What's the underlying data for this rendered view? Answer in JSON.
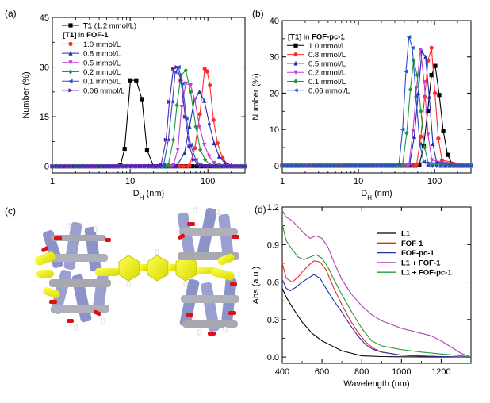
{
  "chart_data": [
    {
      "panel_label": "(a)",
      "type": "line",
      "xscale": "log",
      "xlabel": "D",
      "xlabel_sub": "H",
      "xlabel_unit": " (nm)",
      "ylabel": "Number (%)",
      "xlim": [
        1,
        300
      ],
      "ylim": [
        -2,
        45
      ],
      "xticks": [
        1,
        10,
        100
      ],
      "xtick_labels": [
        "1",
        "10",
        "100"
      ],
      "yticks": [
        0,
        15,
        30,
        45
      ],
      "ytick_labels": [
        "0",
        "15",
        "30",
        "45"
      ],
      "legend_position": "top-left",
      "legend_header": {
        "bold": "[T1]",
        "rest": " in ",
        "bold2": "FOF-1"
      },
      "series": [
        {
          "name_bold": "T1",
          "name": " (1.2 mmol/L)",
          "color": "#000000",
          "marker": "square",
          "x": [
            1,
            7.5,
            8.5,
            10.1,
            12.0,
            14.2,
            16.5,
            20,
            300
          ],
          "y": [
            0,
            0.3,
            5.3,
            26.0,
            26.0,
            20.3,
            5.0,
            0,
            0
          ]
        },
        {
          "name": "1.0 mmol/L",
          "color": "#ff2a2a",
          "marker": "circle",
          "x": [
            1,
            58,
            68,
            79,
            91,
            98,
            106,
            118,
            133,
            155,
            180,
            300
          ],
          "y": [
            0,
            0.2,
            5.5,
            15.8,
            29.5,
            28.7,
            24.5,
            14.0,
            7.0,
            2.5,
            0.5,
            0
          ]
        },
        {
          "name": "0.8 mmol/L",
          "color": "#1f2fb4",
          "marker": "triangle-up",
          "x": [
            1,
            40,
            50,
            58,
            67,
            78,
            90,
            104,
            120,
            140,
            165,
            200,
            300
          ],
          "y": [
            0,
            0.2,
            4.0,
            12.0,
            20.0,
            22.5,
            19.8,
            13.0,
            7.0,
            3.0,
            1.0,
            0.3,
            0
          ]
        },
        {
          "name": "0.5 mmol/L",
          "color": "#c040d0",
          "marker": "triangle-down",
          "x": [
            1,
            36,
            41,
            46,
            52,
            60,
            68,
            78,
            90,
            104,
            120,
            140,
            300
          ],
          "y": [
            0,
            0.3,
            5.0,
            18.0,
            25.0,
            24.5,
            20.0,
            12.0,
            6.5,
            3.0,
            1.0,
            0.3,
            0
          ]
        },
        {
          "name": "0.2 mmol/L",
          "color": "#1a9a3a",
          "marker": "diamond",
          "x": [
            1,
            31,
            36,
            40,
            45,
            52,
            60,
            70,
            80,
            92,
            106,
            300
          ],
          "y": [
            0,
            0.5,
            8.0,
            18.5,
            27.5,
            29.0,
            22.5,
            12.0,
            5.0,
            2.0,
            0.5,
            0
          ]
        },
        {
          "name": "0.1 mmol/L",
          "color": "#2a50c8",
          "marker": "triangle-left",
          "x": [
            1,
            27,
            31,
            35,
            38,
            42,
            47,
            53,
            60,
            70,
            80,
            300
          ],
          "y": [
            0,
            0.5,
            8.0,
            19.5,
            28.5,
            30.0,
            25.0,
            14.5,
            6.5,
            2.0,
            0.5,
            0
          ]
        },
        {
          "name": "0.06 mmol/L",
          "color": "#5a1eb4",
          "marker": "triangle-right",
          "x": [
            1,
            25,
            29,
            32,
            36,
            40,
            45,
            51,
            58,
            66,
            75,
            300
          ],
          "y": [
            0,
            0.5,
            8.0,
            19.5,
            29.5,
            30.0,
            26.0,
            15.0,
            6.0,
            2.0,
            0.5,
            0
          ]
        }
      ]
    },
    {
      "panel_label": "(b)",
      "type": "line",
      "xscale": "log",
      "xlabel": "D",
      "xlabel_sub": "H",
      "xlabel_unit": " (nm)",
      "ylabel": "Number (%)",
      "xlim": [
        1,
        300
      ],
      "ylim": [
        -2,
        40
      ],
      "xticks": [
        1,
        10,
        100
      ],
      "xtick_labels": [
        "1",
        "10",
        "100"
      ],
      "yticks": [
        0,
        10,
        20,
        30,
        40
      ],
      "ytick_labels": [
        "0",
        "10",
        "20",
        "30",
        "40"
      ],
      "legend_position": "top-left",
      "legend_header": {
        "bold": "[T1]",
        "rest": " in ",
        "bold2": "FOF-pc-1"
      },
      "series": [
        {
          "name": "1.0 mmol/L",
          "color": "#000000",
          "marker": "square",
          "x": [
            1,
            63,
            72,
            81,
            91,
            102,
            115,
            130,
            148,
            170,
            300
          ],
          "y": [
            0,
            0.3,
            5.5,
            15.0,
            25.0,
            27.5,
            19.5,
            9.5,
            3.0,
            0.5,
            0
          ]
        },
        {
          "name": "0.8 mmol/L",
          "color": "#ff2a2a",
          "marker": "circle",
          "x": [
            1,
            58,
            66,
            74,
            82,
            91,
            101,
            112,
            125,
            300
          ],
          "y": [
            0,
            0.3,
            8.0,
            19.0,
            29.0,
            32.5,
            20.0,
            7.5,
            1.5,
            0
          ]
        },
        {
          "name": "0.5 mmol/L",
          "color": "#1f2fb4",
          "marker": "triangle-up",
          "x": [
            1,
            47,
            54,
            61,
            68,
            76,
            85,
            95,
            106,
            300
          ],
          "y": [
            0,
            0.3,
            8.0,
            20.0,
            31.5,
            30.0,
            19.0,
            6.0,
            1.0,
            0
          ]
        },
        {
          "name": "0.2 mmol/L",
          "color": "#c040d0",
          "marker": "triangle-down",
          "x": [
            1,
            46,
            52,
            58,
            65,
            73,
            82,
            92,
            300
          ],
          "y": [
            0,
            0.3,
            9.5,
            21.5,
            32.0,
            23.0,
            8.5,
            1.5,
            0
          ]
        },
        {
          "name": "0.1 mmol/L",
          "color": "#1a9a3a",
          "marker": "diamond",
          "x": [
            1,
            38,
            43,
            48,
            53,
            59,
            66,
            74,
            83,
            300
          ],
          "y": [
            0,
            0.3,
            9.0,
            21.0,
            29.0,
            25.0,
            15.0,
            5.0,
            0.5,
            0
          ]
        },
        {
          "name": "0.06 mmol/L",
          "color": "#2a50c8",
          "marker": "triangle-left",
          "x": [
            1,
            34,
            38,
            42,
            46,
            51,
            57,
            64,
            72,
            300
          ],
          "y": [
            0,
            0.3,
            10.0,
            26.0,
            35.5,
            32.5,
            19.0,
            6.0,
            1.0,
            0
          ]
        }
      ]
    },
    {
      "panel_label": "(d)",
      "type": "line",
      "xlabel": "Wavelength (nm)",
      "ylabel": "Abs (a.u.)",
      "xlim": [
        400,
        1350
      ],
      "ylim": [
        -0.05,
        1.2
      ],
      "xticks": [
        400,
        600,
        800,
        1000,
        1200
      ],
      "xtick_labels": [
        "400",
        "600",
        "800",
        "1000",
        "1200"
      ],
      "yticks": [
        0.0,
        0.3,
        0.6,
        0.9,
        1.2
      ],
      "ytick_labels": [
        "0.0",
        "0.3",
        "0.6",
        "0.9",
        "1.2"
      ],
      "legend_position": "top-right",
      "series": [
        {
          "name": "L1",
          "color": "#000000",
          "x": [
            400,
            420,
            450,
            500,
            550,
            600,
            650,
            700,
            750,
            800,
            900,
            1000,
            1100,
            1200,
            1350
          ],
          "y": [
            0.55,
            0.48,
            0.4,
            0.28,
            0.19,
            0.13,
            0.09,
            0.05,
            0.03,
            0.01,
            0.004,
            0.002,
            0.001,
            0.0,
            0.0
          ]
        },
        {
          "name": "FOF-1",
          "color": "#e8281e",
          "x": [
            400,
            420,
            450,
            480,
            500,
            530,
            560,
            590,
            620,
            660,
            700,
            740,
            780,
            820,
            860,
            900,
            1000,
            1100,
            1200,
            1350
          ],
          "y": [
            0.75,
            0.63,
            0.6,
            0.64,
            0.68,
            0.73,
            0.77,
            0.76,
            0.7,
            0.55,
            0.42,
            0.3,
            0.2,
            0.12,
            0.07,
            0.04,
            0.015,
            0.008,
            0.004,
            0.0
          ]
        },
        {
          "name": "FOF-pc-1",
          "color": "#2430a8",
          "x": [
            400,
            420,
            440,
            470,
            500,
            530,
            560,
            590,
            620,
            660,
            700,
            740,
            780,
            820,
            860,
            900,
            1000,
            1100,
            1200,
            1350
          ],
          "y": [
            0.62,
            0.55,
            0.53,
            0.56,
            0.6,
            0.63,
            0.66,
            0.63,
            0.55,
            0.45,
            0.36,
            0.26,
            0.17,
            0.1,
            0.06,
            0.04,
            0.015,
            0.008,
            0.004,
            0.0
          ]
        },
        {
          "name": "L1 + FOF-1",
          "color": "#b040b0",
          "x": [
            400,
            420,
            450,
            480,
            510,
            540,
            570,
            600,
            630,
            660,
            700,
            750,
            800,
            850,
            900,
            1000,
            1100,
            1150,
            1200,
            1250,
            1300,
            1350
          ],
          "y": [
            1.17,
            1.12,
            1.09,
            1.04,
            0.99,
            0.95,
            0.97,
            0.95,
            0.88,
            0.76,
            0.62,
            0.5,
            0.41,
            0.34,
            0.29,
            0.23,
            0.19,
            0.17,
            0.13,
            0.08,
            0.03,
            0.0
          ]
        },
        {
          "name": "L1 + FOF-pc-1",
          "color": "#2a9a3a",
          "x": [
            400,
            420,
            450,
            480,
            510,
            540,
            570,
            600,
            630,
            660,
            700,
            750,
            800,
            850,
            900,
            1000,
            1100,
            1200,
            1300,
            1350
          ],
          "y": [
            1.06,
            0.93,
            0.86,
            0.8,
            0.78,
            0.8,
            0.82,
            0.79,
            0.72,
            0.62,
            0.5,
            0.36,
            0.23,
            0.13,
            0.09,
            0.06,
            0.04,
            0.025,
            0.01,
            0.0
          ]
        }
      ]
    }
  ],
  "panel_c": {
    "panel_label": "(c)"
  }
}
